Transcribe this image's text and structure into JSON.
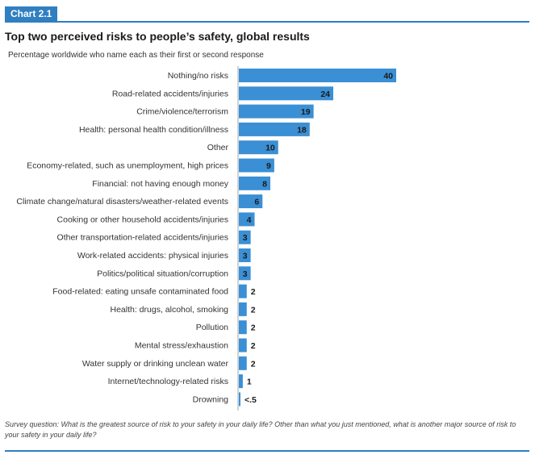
{
  "header": {
    "chart_tag": "Chart 2.1",
    "title": "Top two perceived risks to people’s safety, global results",
    "subtitle": "Percentage worldwide who name each as their first or second response"
  },
  "footer": {
    "note": "Survey question: What is the greatest source of risk to your safety in your daily life? Other than what you just mentioned, what is another major source of risk to your safety in your daily life?"
  },
  "colors": {
    "bar": "#3b8fd4",
    "accent": "#2f7fc1",
    "label_dark": "#1a1a1a"
  },
  "chart_data": {
    "type": "bar",
    "orientation": "horizontal",
    "title": "Top two perceived risks to people’s safety, global results",
    "subtitle": "Percentage worldwide who name each as their first or second response",
    "xlim": [
      0,
      40
    ],
    "grid": false,
    "categories": [
      "Nothing/no risks",
      "Road-related accidents/injuries",
      "Crime/violence/terrorism",
      "Health: personal health condition/illness",
      "Other",
      "Economy-related, such as unemployment, high prices",
      "Financial: not having enough money",
      "Climate change/natural disasters/weather-related events",
      "Cooking or other household accidents/injuries",
      "Other transportation-related accidents/injuries",
      "Work-related accidents: physical injuries",
      "Politics/political situation/corruption",
      "Food-related: eating unsafe contaminated food",
      "Health: drugs, alcohol, smoking",
      "Pollution",
      "Mental stress/exhaustion",
      "Water supply or drinking unclean water",
      "Internet/technology-related risks",
      "Drowning"
    ],
    "values": [
      40,
      24,
      19,
      18,
      10,
      9,
      8,
      6,
      4,
      3,
      3,
      3,
      2,
      2,
      2,
      2,
      2,
      1,
      0.4
    ],
    "value_labels": [
      "40",
      "24",
      "19",
      "18",
      "10",
      "9",
      "8",
      "6",
      "4",
      "3",
      "3",
      "3",
      "2",
      "2",
      "2",
      "2",
      "2",
      "1",
      "<.5"
    ]
  }
}
